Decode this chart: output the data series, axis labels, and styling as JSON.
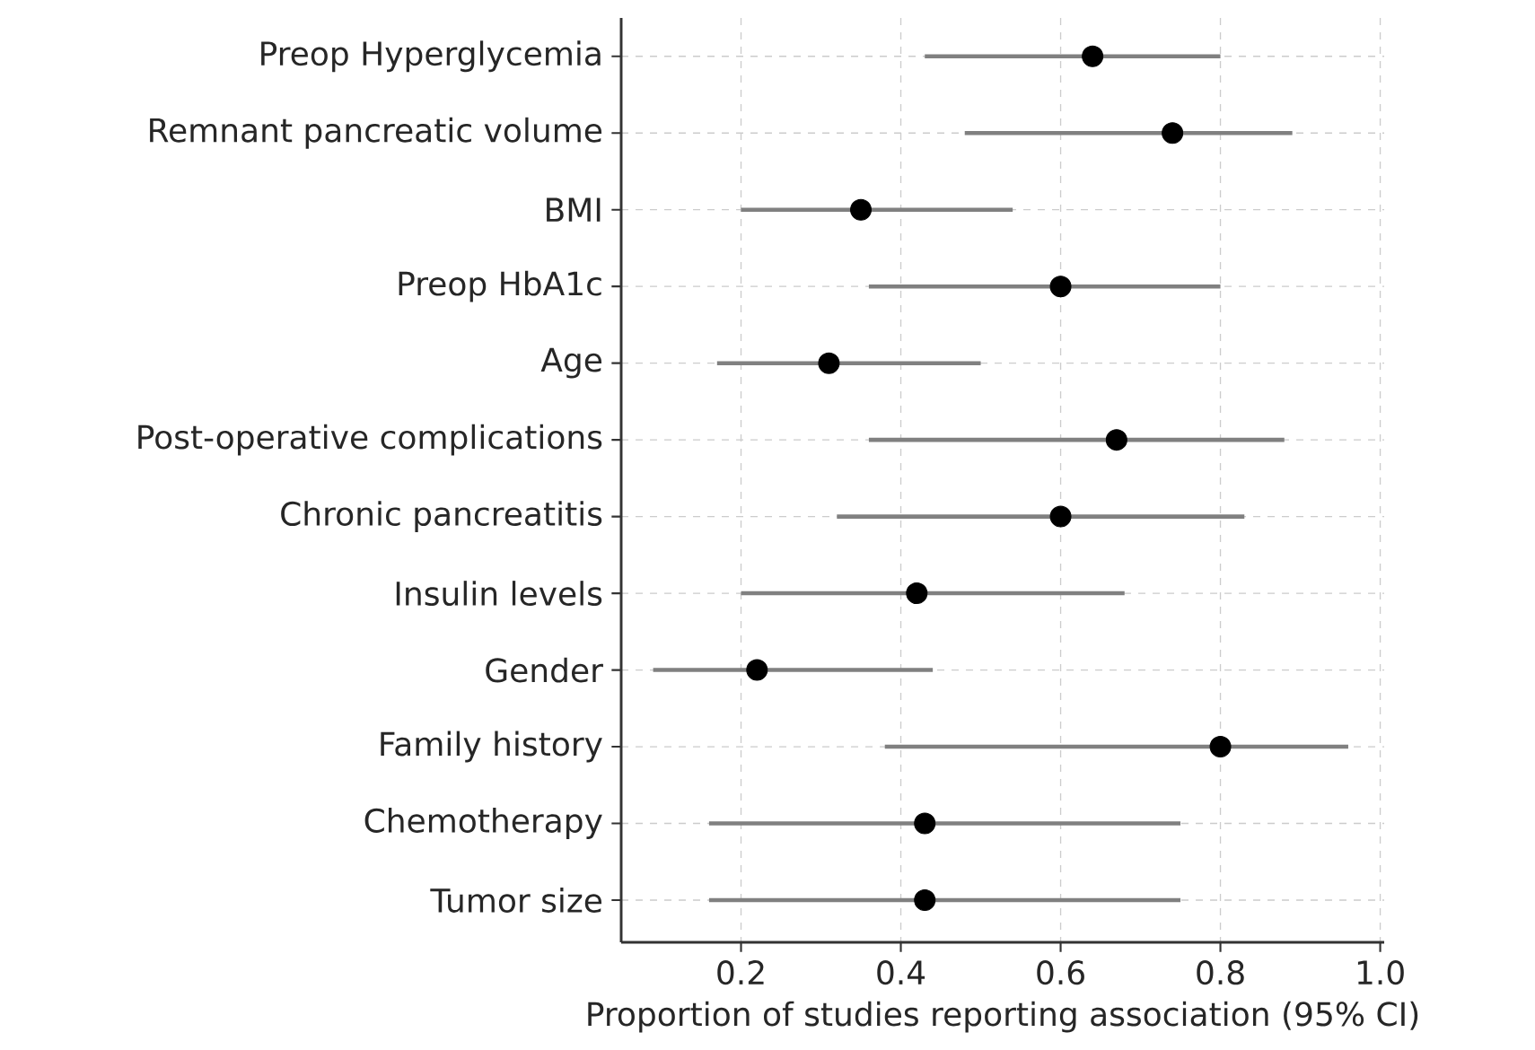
{
  "chart_data": {
    "type": "scatter",
    "orientation": "horizontal",
    "xlabel": "Proportion of studies reporting association (95% CI)",
    "categories": [
      "Preop Hyperglycemia",
      "Remnant pancreatic volume",
      "BMI",
      "Preop HbA1c",
      "Age",
      "Post-operative complications",
      "Chronic pancreatitis",
      "Insulin levels",
      "Gender",
      "Family history",
      "Chemotherapy",
      "Tumor size"
    ],
    "values": [
      0.64,
      0.74,
      0.35,
      0.6,
      0.31,
      0.67,
      0.6,
      0.42,
      0.22,
      0.8,
      0.43,
      0.43
    ],
    "errors": [
      [
        0.43,
        0.8
      ],
      [
        0.48,
        0.89
      ],
      [
        0.2,
        0.54
      ],
      [
        0.36,
        0.8
      ],
      [
        0.17,
        0.5
      ],
      [
        0.36,
        0.88
      ],
      [
        0.32,
        0.83
      ],
      [
        0.2,
        0.68
      ],
      [
        0.09,
        0.44
      ],
      [
        0.38,
        0.96
      ],
      [
        0.16,
        0.75
      ],
      [
        0.16,
        0.75
      ]
    ],
    "color": "#000000",
    "marker": "circle",
    "xlim": [
      0.05,
      1.005
    ],
    "xticks": [
      0.2,
      0.4,
      0.6,
      0.8,
      {
        "value": 1,
        "label": "1.0"
      }
    ],
    "grid": true
  }
}
